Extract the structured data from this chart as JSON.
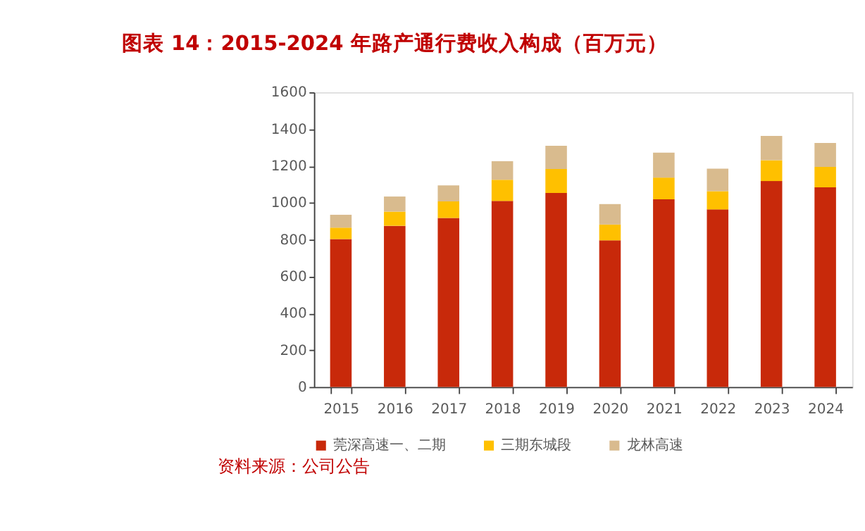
{
  "chart_data": {
    "type": "bar",
    "stacked": true,
    "title": "图表 14：2015-2024 年路产通行费收入构成（百万元）",
    "categories": [
      "2015",
      "2016",
      "2017",
      "2018",
      "2019",
      "2020",
      "2021",
      "2022",
      "2023",
      "2024"
    ],
    "series": [
      {
        "name": "莞深高速一、二期",
        "color": "#c8290a",
        "values": [
          803,
          875,
          918,
          1010,
          1053,
          796,
          1019,
          964,
          1118,
          1084
        ]
      },
      {
        "name": "三期东城段",
        "color": "#ffc000",
        "values": [
          62,
          77,
          89,
          115,
          130,
          86,
          118,
          99,
          113,
          111
        ]
      },
      {
        "name": "龙林高速",
        "color": "#d9bb8e",
        "values": [
          70,
          82,
          87,
          101,
          127,
          111,
          135,
          122,
          132,
          130
        ]
      }
    ],
    "ylim": [
      0,
      1600
    ],
    "yticks": [
      0,
      200,
      400,
      600,
      800,
      1000,
      1200,
      1400,
      1600
    ],
    "grid": false,
    "legend": "bottom",
    "annotations": [
      "资料来源：公司公告"
    ]
  }
}
